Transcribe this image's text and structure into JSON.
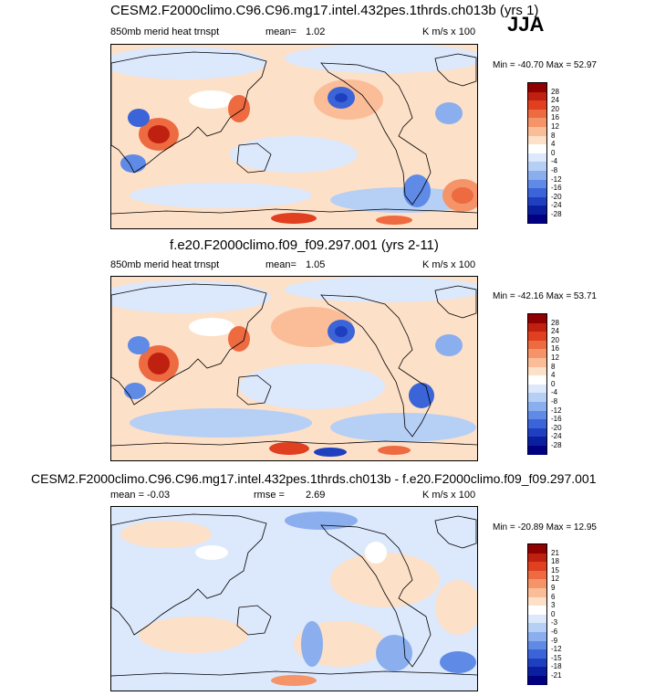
{
  "season": "JJA",
  "palette_full": [
    "#900000",
    "#c02010",
    "#e04020",
    "#ee6a40",
    "#f59468",
    "#fbbd98",
    "#fde0c8",
    "#ffffff",
    "#dce8fb",
    "#b6cff5",
    "#8aaeee",
    "#5f8ae6",
    "#3a64d8",
    "#1e40c0",
    "#0a1ea0",
    "#000080"
  ],
  "palette_diff": [
    "#900000",
    "#c02010",
    "#e04020",
    "#ee6a40",
    "#f59468",
    "#fbbd98",
    "#fde0c8",
    "#ffffff",
    "#dce8fb",
    "#b6cff5",
    "#8aaeee",
    "#5f8ae6",
    "#3a64d8",
    "#1e40c0",
    "#0a1ea0",
    "#000080"
  ],
  "panels": [
    {
      "title": "CESM2.F2000climo.C96.C96.mg17.intel.432pes.1thrds.ch013b (yrs 1)",
      "left_label": "850mb merid heat trnspt",
      "mean_label": "mean=",
      "mean_value": "1.02",
      "units": "K m/s x 100",
      "minmax": "Min = -40.70 Max = 52.97",
      "colorbar_labels": [
        "28",
        "24",
        "20",
        "16",
        "12",
        "8",
        "4",
        "0",
        "-4",
        "-8",
        "-12",
        "-16",
        "-20",
        "-24",
        "-28"
      ]
    },
    {
      "title": "f.e20.F2000climo.f09_f09.297.001 (yrs 2-11)",
      "left_label": "850mb merid heat trnspt",
      "mean_label": "mean=",
      "mean_value": "1.05",
      "units": "K m/s x 100",
      "minmax": "Min = -42.16 Max = 53.71",
      "colorbar_labels": [
        "28",
        "24",
        "20",
        "16",
        "12",
        "8",
        "4",
        "0",
        "-4",
        "-8",
        "-12",
        "-16",
        "-20",
        "-24",
        "-28"
      ]
    },
    {
      "title": "CESM2.F2000climo.C96.C96.mg17.intel.432pes.1thrds.ch013b - f.e20.F2000climo.f09_f09.297.001",
      "left_label": "mean =  -0.03",
      "mean_label": "rmse =",
      "mean_value": "2.69",
      "units": "K m/s x 100",
      "minmax": "Min = -20.89 Max = 12.95",
      "colorbar_labels": [
        "21",
        "18",
        "15",
        "12",
        "9",
        "6",
        "3",
        "0",
        "-3",
        "-6",
        "-9",
        "-12",
        "-15",
        "-18",
        "-21"
      ]
    }
  ]
}
